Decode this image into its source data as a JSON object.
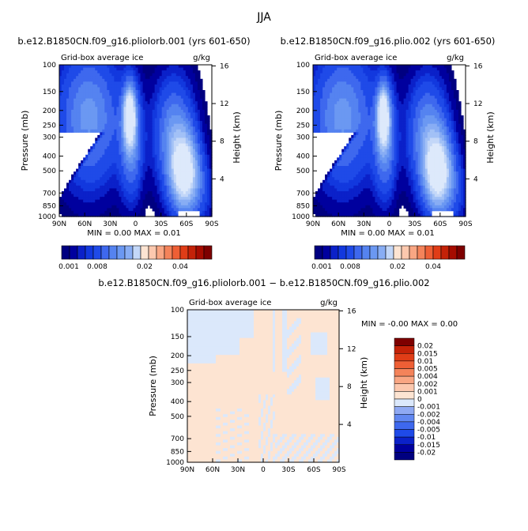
{
  "page_title": "JJA",
  "colors": {
    "neg": [
      "#000080",
      "#0000b2",
      "#0b2be0",
      "#1f4ae8",
      "#3e68ee",
      "#6187f1",
      "#8fa9f3",
      "#bcd0f7",
      "#dbe8fb"
    ],
    "pos": [
      "#fde4d2",
      "#fcc8ae",
      "#f9a683",
      "#f4835a",
      "#ee5f35",
      "#e03d17",
      "#c42208",
      "#a60c00",
      "#7e0000"
    ]
  },
  "chart_data": [
    {
      "type": "heatmap",
      "title": "b.e12.B1850CN.f09_g16.pliolorb.001 (yrs 601-650)",
      "left_label": "Grid-box average ice",
      "units": "g/kg",
      "xticklabels": [
        "90N",
        "60N",
        "30N",
        "0",
        "30S",
        "60S",
        "90S"
      ],
      "yticklabels": [
        "100",
        "150",
        "200",
        "250",
        "300",
        "400",
        "500",
        "700",
        "850",
        "1000"
      ],
      "ylabel": "Pressure (mb)",
      "y2label": "Height (km)",
      "y2ticklabels": [
        "4",
        "8",
        "12",
        "16"
      ],
      "stats": {
        "min_label": "MIN =",
        "min": "0.00",
        "max_label": "MAX =",
        "max": "0.01"
      },
      "colorbar_labels": [
        "0.001",
        "0.008",
        "0.02",
        "0.04"
      ],
      "field": "clim"
    },
    {
      "type": "heatmap",
      "title": "b.e12.B1850CN.f09_g16.plio.002 (yrs 601-650)",
      "left_label": "Grid-box average ice",
      "units": "g/kg",
      "xticklabels": [
        "90N",
        "60N",
        "30N",
        "0",
        "30S",
        "60S",
        "90S"
      ],
      "yticklabels": [
        "100",
        "150",
        "200",
        "250",
        "300",
        "400",
        "500",
        "700",
        "850",
        "1000"
      ],
      "ylabel": "Pressure (mb)",
      "y2label": "Height (km)",
      "y2ticklabels": [
        "4",
        "8",
        "12",
        "16"
      ],
      "stats": {
        "min_label": "MIN =",
        "min": "0.00",
        "max_label": "MAX =",
        "max": "0.01"
      },
      "colorbar_labels": [
        "0.001",
        "0.008",
        "0.02",
        "0.04"
      ],
      "field": "clim"
    },
    {
      "type": "heatmap",
      "title": "b.e12.B1850CN.f09_g16.pliolorb.001 − b.e12.B1850CN.f09_g16.plio.002",
      "left_label": "Grid-box average ice",
      "units": "g/kg",
      "xticklabels": [
        "90N",
        "60N",
        "30N",
        "0",
        "30S",
        "60S",
        "90S"
      ],
      "yticklabels": [
        "100",
        "150",
        "200",
        "250",
        "300",
        "400",
        "500",
        "700",
        "850",
        "1000"
      ],
      "ylabel": "Pressure (mb)",
      "y2label": "Height (km)",
      "y2ticklabels": [
        "4",
        "8",
        "12",
        "16"
      ],
      "stats": {
        "min_label": "MIN =",
        "min": "-0.00",
        "max_label": "MAX =",
        "max": "0.00"
      },
      "colorbar_labels": [
        "0.02",
        "0.015",
        "0.01",
        "0.005",
        "0.004",
        "0.002",
        "0.001",
        "0",
        "-0.001",
        "-0.002",
        "-0.004",
        "-0.005",
        "-0.01",
        "-0.015",
        "-0.02"
      ],
      "field": "diff"
    }
  ]
}
